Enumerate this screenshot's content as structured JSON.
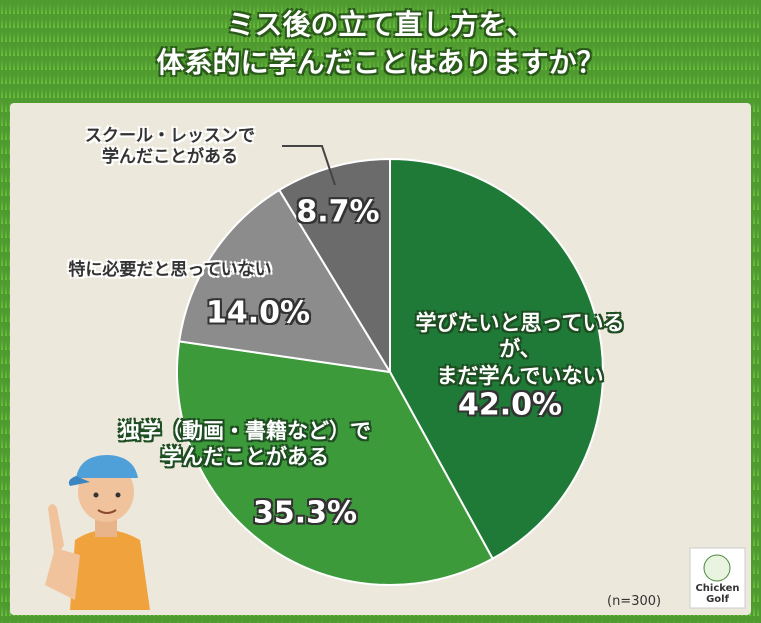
{
  "chart_data": {
    "type": "pie",
    "title": "ミス後の立て直し方を、\n体系的に学んだことはありますか？",
    "categories": [
      "学びたいと思っているが、\nまだ学んでいない",
      "独学（動画・書籍など）で\n学んだことがある",
      "特に必要だと思っていない",
      "スクール・レッスンで\n学んだことがある"
    ],
    "values": [
      42.0,
      35.3,
      14.0,
      8.7
    ],
    "value_labels": [
      "42.0%",
      "35.3%",
      "14.0%",
      "8.7%"
    ],
    "colors": [
      "#1f7a38",
      "#3d9a3a",
      "#8c8c8c",
      "#6b6b6b"
    ],
    "note": "(n=300)",
    "logo": [
      "Chicken",
      "Golf"
    ]
  }
}
